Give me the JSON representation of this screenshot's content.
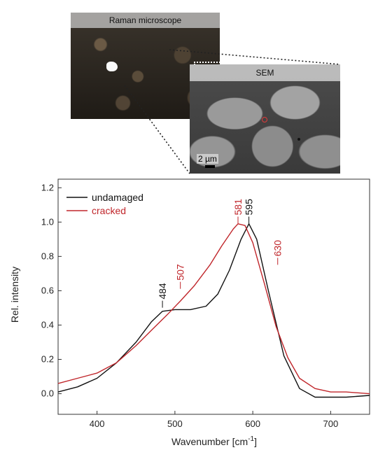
{
  "images": {
    "raman_header": "Raman microscope",
    "sem_header": "SEM",
    "sem_scale": "2 µm"
  },
  "colors": {
    "undamaged": "#111111",
    "cracked": "#c0262b"
  },
  "chart_data": {
    "type": "line",
    "xlabel": "Wavenumber [cm",
    "xlabel_sup": "-1",
    "xlabel_end": "]",
    "ylabel": "Rel. intensity",
    "xlim": [
      350,
      750
    ],
    "ylim": [
      -0.12,
      1.25
    ],
    "x_ticks": [
      400,
      500,
      600,
      700
    ],
    "y_ticks": [
      0.0,
      0.2,
      0.4,
      0.6,
      0.8,
      1.0,
      1.2
    ],
    "y_tick_labels": [
      "0.0",
      "0.2",
      "0.4",
      "0.6",
      "0.8",
      "1.0",
      "1.2"
    ],
    "legend_position": "top-left",
    "series": [
      {
        "name": "undamaged",
        "color": "#111111",
        "x": [
          350,
          375,
          400,
          425,
          450,
          470,
          484,
          500,
          520,
          540,
          555,
          570,
          585,
          595,
          605,
          620,
          640,
          660,
          680,
          700,
          720,
          750
        ],
        "y": [
          0.01,
          0.04,
          0.09,
          0.18,
          0.3,
          0.42,
          0.48,
          0.49,
          0.49,
          0.51,
          0.58,
          0.72,
          0.9,
          0.99,
          0.9,
          0.6,
          0.22,
          0.03,
          -0.02,
          -0.02,
          -0.02,
          -0.01
        ]
      },
      {
        "name": "cracked",
        "color": "#c0262b",
        "x": [
          350,
          375,
          400,
          425,
          450,
          470,
          490,
          507,
          525,
          545,
          560,
          575,
          581,
          590,
          600,
          615,
          630,
          645,
          660,
          680,
          700,
          720,
          750
        ],
        "y": [
          0.06,
          0.09,
          0.12,
          0.18,
          0.28,
          0.37,
          0.46,
          0.54,
          0.63,
          0.75,
          0.86,
          0.96,
          0.99,
          0.98,
          0.88,
          0.64,
          0.39,
          0.21,
          0.09,
          0.03,
          0.01,
          0.01,
          0.0
        ]
      }
    ],
    "annotations": [
      {
        "text": "484",
        "x": 484,
        "y": 0.55,
        "color": "#111111",
        "rotate": true
      },
      {
        "text": "507",
        "x": 507,
        "y": 0.66,
        "color": "#c0262b",
        "rotate": true
      },
      {
        "text": "581",
        "x": 581,
        "y": 1.04,
        "color": "#c0262b",
        "rotate": true
      },
      {
        "text": "595",
        "x": 595,
        "y": 1.04,
        "color": "#111111",
        "rotate": true
      },
      {
        "text": "630",
        "x": 632,
        "y": 0.8,
        "color": "#c0262b",
        "rotate": true
      }
    ]
  }
}
